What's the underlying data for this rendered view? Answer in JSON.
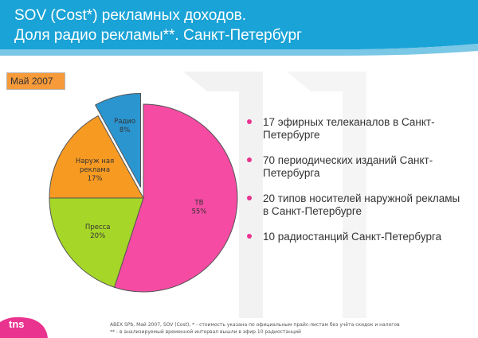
{
  "header": {
    "title_line1": "SOV (Cost*) рекламных доходов.",
    "title_line2": "Доля радио рекламы**. Санкт-Петербург",
    "color": "#1aa3d6"
  },
  "date_badge": "Май 2007",
  "bullets": [
    "17 эфирных телеканалов в Санкт-Петербурге",
    "70 периодических изданий Санкт-Петербурга",
    "20 типов носителей наружной рекламы в Санкт-Петербурге",
    "10 радиостанций Санкт-Петербурга"
  ],
  "footnote": {
    "line1": "ABEX SPb, Май 2007, SOV (Cost), * - стоимость указана по официальным прайс-листам без учёта скидок и налогов",
    "line2": "** - в анализируемый временной интервал вышли в эфир 10 радиостанций"
  },
  "logo": {
    "text": "tns",
    "color": "#e9338f"
  },
  "chart_data": {
    "type": "pie",
    "slices": [
      {
        "label": "ТВ",
        "value": 55,
        "value_label": "55%",
        "color": "#f54ba3"
      },
      {
        "label": "Пресса",
        "value": 20,
        "value_label": "20%",
        "color": "#a6d628"
      },
      {
        "label": "Наружная реклама",
        "label_lines": [
          "Наруж ная",
          "реклама"
        ],
        "value": 17,
        "value_label": "17%",
        "color": "#f79a22"
      },
      {
        "label": "Радио",
        "value": 8,
        "value_label": "8%",
        "color": "#2b95d0",
        "exploded": true
      }
    ]
  }
}
